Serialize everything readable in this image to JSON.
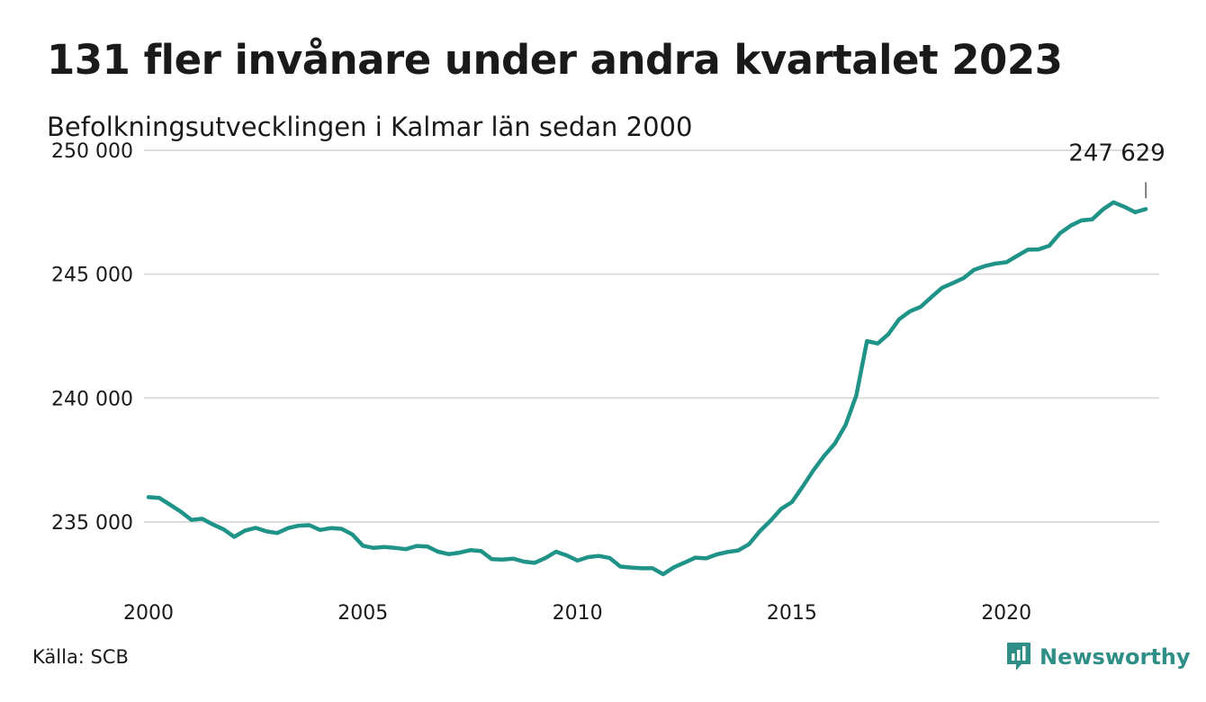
{
  "title": "131 fler invånare under andra kvartalet 2023",
  "subtitle": "Befolkningsutvecklingen i Kalmar län sedan 2000",
  "source": "Källa: SCB",
  "brand": {
    "name": "Newsworthy",
    "icon": "newsworthy-logo-icon",
    "color": "#2f8f86"
  },
  "chart_data": {
    "type": "line",
    "color": "#1f9387",
    "grid": true,
    "xlim": [
      2000,
      2023.5
    ],
    "ylim": [
      233000,
      250000
    ],
    "x_ticks": [
      2000,
      2005,
      2010,
      2015,
      2020
    ],
    "x_tick_labels": [
      "2000",
      "2005",
      "2010",
      "2015",
      "2020"
    ],
    "y_ticks": [
      235000,
      240000,
      245000,
      250000
    ],
    "y_tick_labels": [
      "235 000",
      "240 000",
      "245 000",
      "250 000"
    ],
    "end_label": "247 629",
    "series": [
      {
        "x": [
          2000.0,
          2000.25,
          2000.5,
          2000.75,
          2001.0,
          2001.25,
          2001.5,
          2001.75,
          2002.0,
          2002.25,
          2002.5,
          2002.75,
          2003.0,
          2003.25,
          2003.5,
          2003.75,
          2004.0,
          2004.25,
          2004.5,
          2004.75,
          2005.0,
          2005.25,
          2005.5,
          2005.75,
          2006.0,
          2006.25,
          2006.5,
          2006.75,
          2007.0,
          2007.25,
          2007.5,
          2007.75,
          2008.0,
          2008.25,
          2008.5,
          2008.75,
          2009.0,
          2009.25,
          2009.5,
          2009.75,
          2010.0,
          2010.25,
          2010.5,
          2010.75,
          2011.0,
          2011.25,
          2011.5,
          2011.75,
          2012.0,
          2012.25,
          2012.5,
          2012.75,
          2013.0,
          2013.25,
          2013.5,
          2013.75,
          2014.0,
          2014.25,
          2014.5,
          2014.75,
          2015.0,
          2015.25,
          2015.5,
          2015.75,
          2016.0,
          2016.25,
          2016.5,
          2016.75,
          2017.0,
          2017.25,
          2017.5,
          2017.75,
          2018.0,
          2018.25,
          2018.5,
          2018.75,
          2019.0,
          2019.25,
          2019.5,
          2019.75,
          2020.0,
          2020.25,
          2020.5,
          2020.75,
          2021.0,
          2021.25,
          2021.5,
          2021.75,
          2022.0,
          2022.25,
          2022.5,
          2022.75,
          2023.0,
          2023.25
        ],
        "values": [
          236000,
          235970,
          235700,
          235420,
          235080,
          235130,
          234900,
          234700,
          234400,
          234650,
          234760,
          234620,
          234550,
          234750,
          234850,
          234870,
          234680,
          234750,
          234720,
          234500,
          234040,
          233950,
          233990,
          233950,
          233900,
          234030,
          234010,
          233800,
          233700,
          233760,
          233860,
          233830,
          233500,
          233480,
          233520,
          233400,
          233350,
          233540,
          233800,
          233650,
          233440,
          233580,
          233630,
          233550,
          233200,
          233160,
          233130,
          233130,
          232890,
          233170,
          233360,
          233560,
          233530,
          233690,
          233790,
          233850,
          234100,
          234620,
          235050,
          235530,
          235800,
          236420,
          237080,
          237660,
          238160,
          238910,
          240100,
          242300,
          242200,
          242580,
          243180,
          243500,
          243680,
          244070,
          244450,
          244640,
          244840,
          245180,
          245330,
          245430,
          245480,
          245740,
          245990,
          246000,
          246150,
          246650,
          246960,
          247170,
          247210,
          247610,
          247900,
          247720,
          247500,
          247629
        ]
      }
    ]
  }
}
